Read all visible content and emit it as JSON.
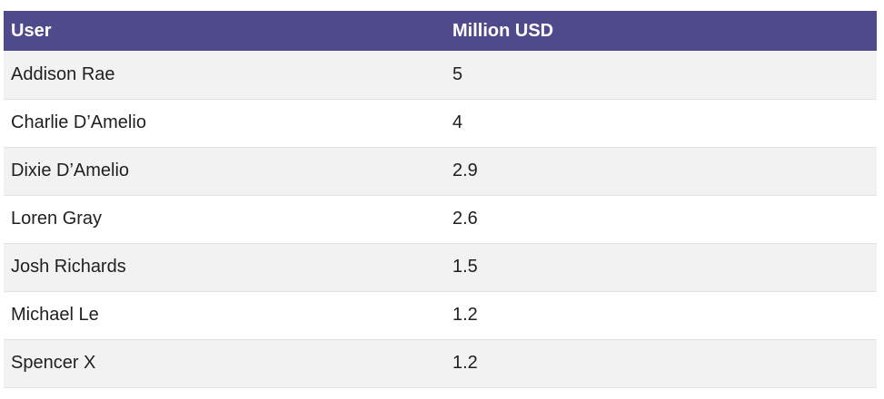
{
  "chart_data": {
    "type": "table",
    "columns": [
      "User",
      "Million USD"
    ],
    "rows": [
      {
        "user": "Addison Rae",
        "value": "5"
      },
      {
        "user": "Charlie D’Amelio",
        "value": "4"
      },
      {
        "user": "Dixie D’Amelio",
        "value": "2.9"
      },
      {
        "user": "Loren Gray",
        "value": "2.6"
      },
      {
        "user": "Josh Richards",
        "value": "1.5"
      },
      {
        "user": "Michael Le",
        "value": "1.2"
      },
      {
        "user": "Spencer X",
        "value": "1.2"
      }
    ]
  },
  "colors": {
    "header_background": "#4f4a8c",
    "header_text": "#ffffff",
    "row_odd": "#f2f2f2",
    "row_even": "#ffffff"
  }
}
